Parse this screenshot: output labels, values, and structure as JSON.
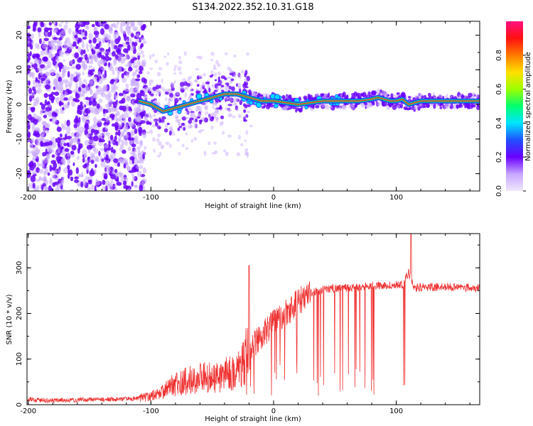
{
  "title": "S134.2022.352.10.31.G18",
  "colors": {
    "snr_line": "#f03030",
    "spectral_ridge": "#ff3030",
    "scatter_dense": "#6a00ff",
    "scatter_light": "#c9a8ff",
    "colorbar": [
      "#f0e8ff",
      "#c7a6ff",
      "#6a00ff",
      "#2050ff",
      "#00e5ff",
      "#00ff70",
      "#9cff00",
      "#ffe000",
      "#ff7a00",
      "#ff1010",
      "#ff1080"
    ]
  },
  "chart_data": [
    {
      "type": "heatmap",
      "xlabel": "Height of straight line (km)",
      "ylabel": "Frequency (Hz)",
      "xlim": [
        -201,
        168
      ],
      "ylim": [
        -25,
        24
      ],
      "x_ticks": [
        -200,
        -100,
        0,
        100
      ],
      "y_ticks": [
        -20,
        -10,
        0,
        10,
        20
      ],
      "colorbar": {
        "label": "Normalized spectral amplitude",
        "range": [
          0,
          1
        ],
        "ticks": [
          0.0,
          0.2,
          0.4,
          0.6,
          0.8
        ]
      },
      "ridge": {
        "x": [
          -110,
          -100,
          -90,
          -80,
          -70,
          -60,
          -50,
          -40,
          -30,
          -20,
          -10,
          0,
          10,
          20,
          30,
          40,
          50,
          60,
          70,
          80,
          85,
          90,
          95,
          100,
          105,
          110,
          120,
          140,
          168
        ],
        "y": [
          1,
          0,
          -2,
          -1,
          0,
          1,
          2,
          3,
          3,
          2,
          1,
          1,
          0.5,
          0,
          0.5,
          1,
          1,
          1,
          1,
          1.5,
          2,
          1.5,
          1,
          1,
          1.5,
          0,
          1,
          1,
          1
        ]
      }
    },
    {
      "type": "line",
      "xlabel": "Height of straight line (km)",
      "ylabel": "SNR (10 * v/v)",
      "xlim": [
        -201,
        168
      ],
      "ylim": [
        0,
        375
      ],
      "x_ticks": [
        -200,
        -100,
        0,
        100
      ],
      "y_ticks": [
        0,
        100,
        200,
        300
      ],
      "series": [
        {
          "x": [
            -200,
            -190,
            -180,
            -170,
            -160,
            -150,
            -140,
            -130,
            -120,
            -110,
            -100,
            -90,
            -80,
            -70,
            -60,
            -50,
            -40,
            -30,
            -20,
            -10,
            0,
            10,
            20,
            30,
            40,
            50,
            60,
            70,
            80,
            90,
            100,
            105,
            110,
            115,
            120,
            140,
            168
          ],
          "values": [
            12,
            10,
            9,
            10,
            10,
            11,
            11,
            12,
            13,
            14,
            18,
            30,
            45,
            52,
            58,
            60,
            65,
            72,
            120,
            150,
            180,
            200,
            225,
            245,
            252,
            255,
            256,
            258,
            260,
            262,
            263,
            262,
            290,
            255,
            258,
            258,
            256
          ]
        }
      ]
    }
  ]
}
